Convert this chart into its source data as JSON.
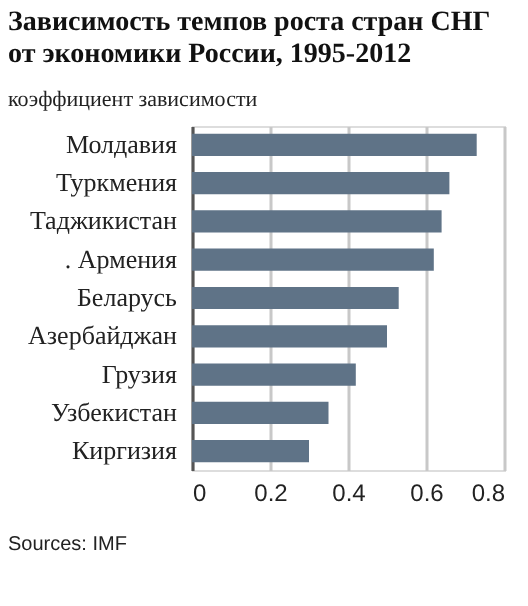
{
  "chart_data": {
    "type": "bar",
    "orientation": "horizontal",
    "title": "Зависимость темпов роста стран СНГ от экономики России, 1995-2012",
    "subtitle": "коэффициент зависимости",
    "categories": [
      "Молдавия",
      "Туркмения",
      "Таджикистан",
      ". Армения",
      "Беларусь",
      "Азербайджан",
      "Грузия",
      "Узбекистан",
      "Киргизия"
    ],
    "values": [
      0.73,
      0.66,
      0.64,
      0.62,
      0.53,
      0.5,
      0.42,
      0.35,
      0.3
    ],
    "color": "#5f7387",
    "xlim": [
      0,
      0.8
    ],
    "xticks": [
      0,
      0.2,
      0.4,
      0.6,
      0.8
    ],
    "grid": "x",
    "annotations": [
      "Sources: IMF"
    ]
  }
}
